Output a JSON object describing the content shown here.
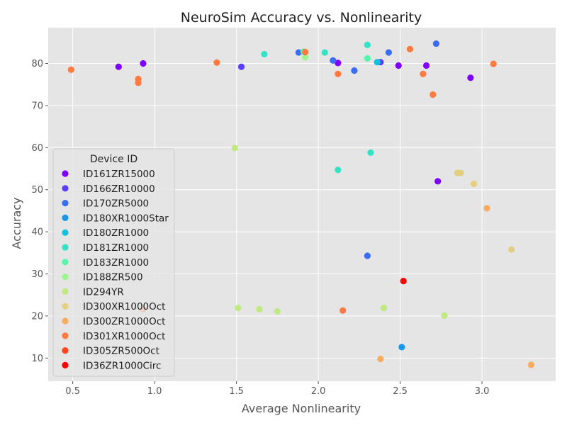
{
  "chart_data": {
    "type": "scatter",
    "title": "NeuroSim Accuracy vs. Nonlinearity",
    "xlabel": "Average Nonlinearity",
    "ylabel": "Accuracy",
    "xlim": [
      0.35,
      3.45
    ],
    "ylim": [
      4.5,
      88.5
    ],
    "xticks": [
      0.5,
      1.0,
      1.5,
      2.0,
      2.5,
      3.0
    ],
    "xtick_labels": [
      "0.5",
      "1.0",
      "1.5",
      "2.0",
      "2.5",
      "3.0"
    ],
    "yticks": [
      10,
      20,
      30,
      40,
      50,
      60,
      70,
      80
    ],
    "ytick_labels": [
      "10",
      "20",
      "30",
      "40",
      "50",
      "60",
      "70",
      "80"
    ],
    "grid": true,
    "background": "#e5e5e5",
    "legend": {
      "title": "Device ID",
      "placement": "lower-left"
    },
    "series": [
      {
        "name": "ID161ZR15000",
        "color": "#8000ff",
        "points": [
          [
            0.78,
            79.2
          ],
          [
            0.93,
            80.0
          ],
          [
            2.12,
            80.1
          ],
          [
            2.49,
            79.5
          ],
          [
            2.66,
            79.5
          ],
          [
            2.93,
            76.6
          ],
          [
            2.73,
            52.0
          ]
        ]
      },
      {
        "name": "ID166ZR10000",
        "color": "#5a3ff8",
        "points": [
          [
            1.53,
            79.2
          ],
          [
            2.38,
            80.3
          ]
        ]
      },
      {
        "name": "ID170ZR5000",
        "color": "#3a6cf4",
        "points": [
          [
            1.88,
            82.6
          ],
          [
            2.09,
            80.7
          ],
          [
            2.22,
            78.3
          ],
          [
            2.43,
            82.6
          ],
          [
            2.72,
            84.7
          ],
          [
            2.3,
            34.3
          ]
        ]
      },
      {
        "name": "ID180XR1000Star",
        "color": "#1a96eb",
        "points": [
          [
            2.51,
            12.6
          ]
        ]
      },
      {
        "name": "ID180ZR1000",
        "color": "#14c0dc",
        "points": [
          [
            2.36,
            80.3
          ]
        ]
      },
      {
        "name": "ID181ZR1000",
        "color": "#34e2c6",
        "points": [
          [
            1.67,
            82.2
          ],
          [
            2.04,
            82.6
          ],
          [
            2.3,
            84.4
          ],
          [
            2.32,
            58.8
          ],
          [
            2.12,
            54.7
          ]
        ]
      },
      {
        "name": "ID183ZR1000",
        "color": "#58f6ac",
        "points": [
          [
            1.91,
            82.8
          ],
          [
            2.3,
            81.2
          ]
        ]
      },
      {
        "name": "ID188ZR500",
        "color": "#9af58e",
        "points": [
          [
            1.92,
            81.5
          ]
        ]
      },
      {
        "name": "ID294YR",
        "color": "#c0ea80",
        "points": [
          [
            1.49,
            59.9
          ],
          [
            1.51,
            21.9
          ],
          [
            1.64,
            21.6
          ],
          [
            1.75,
            21.1
          ],
          [
            2.4,
            21.9
          ],
          [
            2.77,
            20.1
          ]
        ]
      },
      {
        "name": "ID300XR1000Oct",
        "color": "#e2d080",
        "points": [
          [
            2.85,
            54.0
          ],
          [
            2.87,
            54.0
          ],
          [
            2.95,
            51.4
          ],
          [
            3.18,
            35.8
          ]
        ]
      },
      {
        "name": "ID300ZR1000Oct",
        "color": "#f8ac5e",
        "points": [
          [
            3.03,
            45.6
          ],
          [
            3.3,
            8.4
          ],
          [
            2.38,
            9.8
          ]
        ]
      },
      {
        "name": "ID301XR1000Oct",
        "color": "#ff7a40",
        "points": [
          [
            0.49,
            78.5
          ],
          [
            0.9,
            76.3
          ],
          [
            0.9,
            75.4
          ],
          [
            1.38,
            80.2
          ],
          [
            1.92,
            82.7
          ],
          [
            2.12,
            77.5
          ],
          [
            2.56,
            83.4
          ],
          [
            2.64,
            77.5
          ],
          [
            2.7,
            72.6
          ],
          [
            3.07,
            79.9
          ],
          [
            2.15,
            21.3
          ],
          [
            0.93,
            21.6
          ]
        ]
      },
      {
        "name": "ID305ZR500Oct",
        "color": "#ff4420",
        "points": []
      },
      {
        "name": "ID36ZR1000Circ",
        "color": "#ff0000",
        "points": [
          [
            2.52,
            28.3
          ]
        ]
      }
    ]
  }
}
